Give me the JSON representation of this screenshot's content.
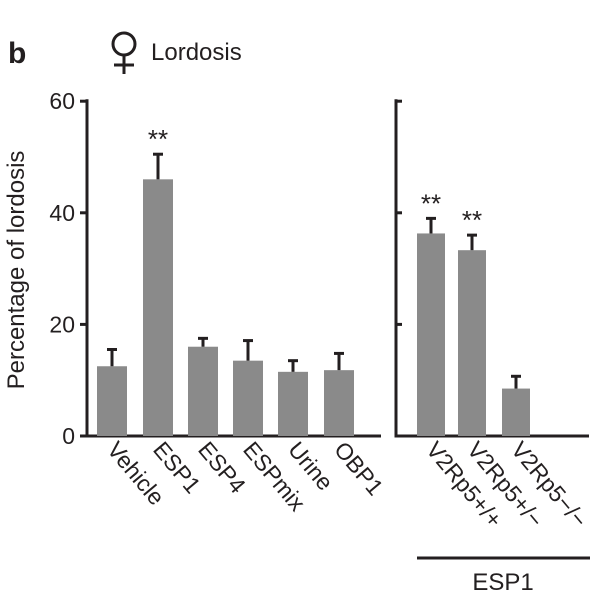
{
  "panel_label": "b",
  "panel_title": "Lordosis",
  "icon": "female-symbol-icon",
  "colors": {
    "bar": "#8a8a8a",
    "ink": "#231f20"
  },
  "chart_data": [
    {
      "type": "bar",
      "title": "Lordosis",
      "ylabel": "Percentage of lordosis",
      "ylim": [
        0,
        60
      ],
      "yticks": [
        0,
        20,
        40,
        60
      ],
      "categories": [
        "Vehicle",
        "ESP1",
        "ESP4",
        "ESPmix",
        "Urine",
        "OBP1"
      ],
      "values": [
        12.5,
        46,
        16,
        13.5,
        11.5,
        11.8
      ],
      "errors": [
        3,
        4.5,
        1.5,
        3.6,
        2,
        3
      ],
      "significance": [
        "",
        "**",
        "",
        "",
        "",
        ""
      ]
    },
    {
      "type": "bar",
      "ylim": [
        0,
        60
      ],
      "yticks": [
        0,
        20,
        40,
        60
      ],
      "categories": [
        "V2Rp5+/+",
        "V2Rp5+/−",
        "V2Rp5−/−"
      ],
      "values": [
        36.3,
        33.3,
        8.5
      ],
      "errors": [
        2.7,
        2.7,
        2.2
      ],
      "significance": [
        "**",
        "**",
        ""
      ],
      "group_label": "ESP1"
    }
  ]
}
